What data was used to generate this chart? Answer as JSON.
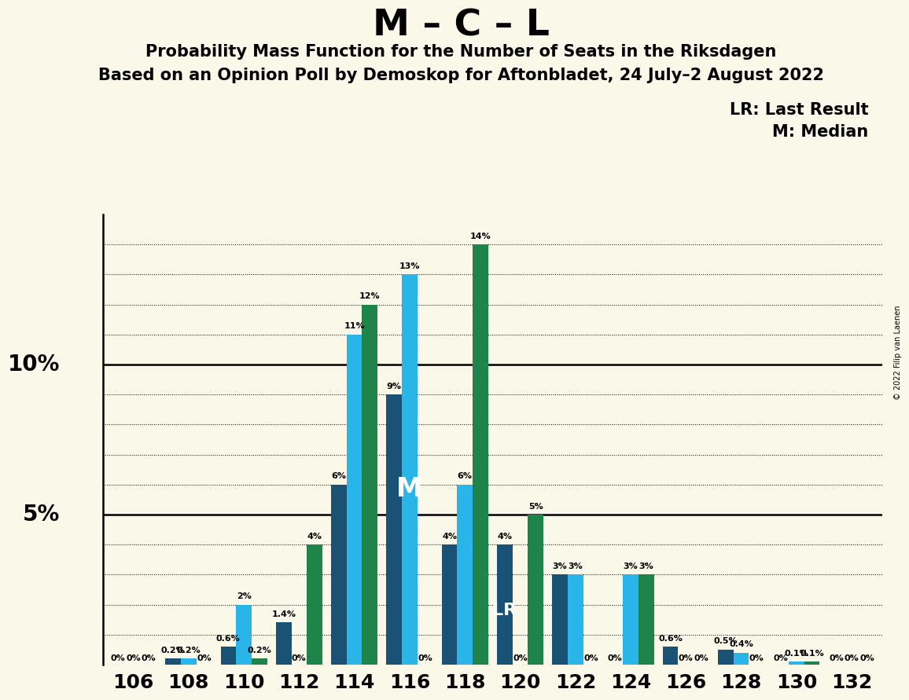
{
  "title": "M – C – L",
  "subtitle1": "Probability Mass Function for the Number of Seats in the Riksdagen",
  "subtitle2": "Based on an Opinion Poll by Demoskop for Aftonbladet, 24 July–2 August 2022",
  "copyright": "© 2022 Filip van Laenen",
  "legend_lr": "LR: Last Result",
  "legend_m": "M: Median",
  "background_color": "#faf8e8",
  "seats": [
    106,
    108,
    110,
    112,
    114,
    116,
    118,
    120,
    122,
    124,
    126,
    128,
    130,
    132
  ],
  "pmf_navy": [
    0.0,
    0.2,
    0.6,
    1.4,
    6.0,
    9.0,
    4.0,
    4.0,
    3.0,
    0.0,
    0.6,
    0.5,
    0.0,
    0.0
  ],
  "pmf_cyan": [
    0.0,
    0.2,
    2.0,
    0.0,
    11.0,
    13.0,
    6.0,
    0.0,
    3.0,
    3.0,
    0.0,
    0.4,
    0.1,
    0.0
  ],
  "pmf_green": [
    0.0,
    0.0,
    0.2,
    4.0,
    12.0,
    0.0,
    14.0,
    5.0,
    0.0,
    3.0,
    0.0,
    0.0,
    0.1,
    0.0
  ],
  "labels_navy": [
    "0%",
    "0.2%",
    "0.6%",
    "1.4%",
    "6%",
    "9%",
    "4%",
    "4%",
    "3%",
    "0%",
    "0.6%",
    "0.5%",
    "0%",
    "0%"
  ],
  "labels_cyan": [
    "0%",
    "0.2%",
    "2%",
    "0%",
    "11%",
    "13%",
    "6%",
    "0%",
    "3%",
    "3%",
    "0%",
    "0.4%",
    "0.1%",
    "0%"
  ],
  "labels_green": [
    "0%",
    "0%",
    "0.2%",
    "4%",
    "12%",
    "0%",
    "14%",
    "5%",
    "0%",
    "3%",
    "0%",
    "0%",
    "0.1%",
    "0%"
  ],
  "color_navy": "#1a5276",
  "color_cyan": "#29b5e8",
  "color_green": "#1e8449",
  "median_seat": 116,
  "lr_seat": 120,
  "ylim_max": 15.0,
  "ylabel_ticks": [
    5.0,
    10.0
  ],
  "ytick_labels": [
    "5%",
    "10%"
  ]
}
